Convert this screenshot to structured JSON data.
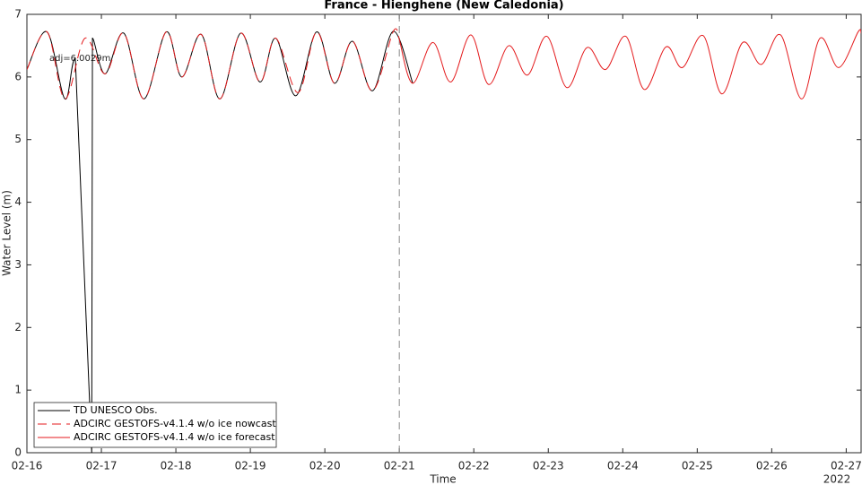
{
  "chart_data": {
    "type": "line",
    "title": "France - Hienghene (New Caledonia)",
    "xlabel": "Time",
    "ylabel": "Water Level (m)",
    "x_annotation": "2022",
    "annotation": "adj=6.0029m",
    "xlim": [
      16,
      27.2
    ],
    "xticks": [
      {
        "value": 16,
        "label": "02-16"
      },
      {
        "value": 17,
        "label": "02-17"
      },
      {
        "value": 18,
        "label": "02-18"
      },
      {
        "value": 19,
        "label": "02-19"
      },
      {
        "value": 20,
        "label": "02-20"
      },
      {
        "value": 21,
        "label": "02-21"
      },
      {
        "value": 22,
        "label": "02-22"
      },
      {
        "value": 23,
        "label": "02-23"
      },
      {
        "value": 24,
        "label": "02-24"
      },
      {
        "value": 25,
        "label": "02-25"
      },
      {
        "value": 26,
        "label": "02-26"
      },
      {
        "value": 27,
        "label": "02-27"
      }
    ],
    "ylim": [
      0,
      7
    ],
    "yticks": [
      0,
      1,
      2,
      3,
      4,
      5,
      6,
      7
    ],
    "vline_x": 21,
    "legend": "lower left",
    "series": [
      {
        "name": "TD UNESCO Obs.",
        "color": "#000000",
        "style": "solid",
        "x": [
          16.0,
          16.27,
          16.51,
          16.65,
          16.87,
          16.88,
          17.05,
          17.3,
          17.57,
          17.87,
          18.08,
          18.34,
          18.59,
          18.87,
          19.13,
          19.34,
          19.61,
          19.89,
          20.13,
          20.37,
          20.64,
          20.92,
          21.18
        ],
        "values": [
          6.12,
          6.72,
          5.65,
          6.3,
          0.0,
          6.62,
          6.05,
          6.7,
          5.65,
          6.72,
          6.0,
          6.68,
          5.65,
          6.7,
          5.92,
          6.62,
          5.7,
          6.72,
          5.9,
          6.57,
          5.78,
          6.73,
          5.9
        ]
      },
      {
        "name": "ADCIRC GESTOFS-v4.1.4 w/o ice nowcast",
        "color": "#e41a1c",
        "style": "dashed",
        "x": [
          16.0,
          16.27,
          16.51,
          16.78,
          17.05,
          17.3,
          17.57,
          17.87,
          18.08,
          18.34,
          18.59,
          18.87,
          19.13,
          19.34,
          19.64,
          19.89,
          20.13,
          20.37,
          20.64,
          20.92,
          21.0
        ],
        "values": [
          6.12,
          6.72,
          5.65,
          6.62,
          6.05,
          6.7,
          5.65,
          6.72,
          6.0,
          6.68,
          5.65,
          6.7,
          5.92,
          6.62,
          5.75,
          6.72,
          5.9,
          6.57,
          5.78,
          6.73,
          6.6
        ]
      },
      {
        "name": "ADCIRC GESTOFS-v4.1.4 w/o ice forecast",
        "color": "#e41a1c",
        "style": "solid",
        "x": [
          21.0,
          21.18,
          21.45,
          21.69,
          21.96,
          22.2,
          22.47,
          22.72,
          22.98,
          23.25,
          23.52,
          23.77,
          24.04,
          24.29,
          24.58,
          24.8,
          25.08,
          25.33,
          25.61,
          25.86,
          26.12,
          26.4,
          26.65,
          26.9,
          27.16,
          27.2
        ],
        "values": [
          6.6,
          5.9,
          6.55,
          5.92,
          6.67,
          5.88,
          6.5,
          6.03,
          6.65,
          5.83,
          6.47,
          6.12,
          6.65,
          5.8,
          6.48,
          6.15,
          6.66,
          5.73,
          6.55,
          6.2,
          6.67,
          5.65,
          6.62,
          6.15,
          6.72,
          6.7
        ]
      }
    ]
  }
}
